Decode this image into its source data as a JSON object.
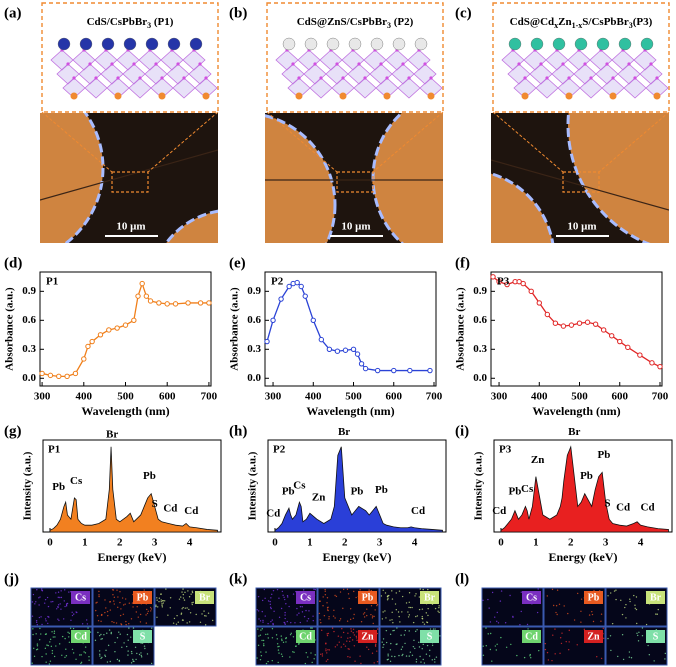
{
  "panels": [
    {
      "label": "(a)",
      "title": [
        {
          "text": "CdS/CsPbBr"
        },
        {
          "text": "3",
          "sub": true
        },
        {
          "text": " (P1)"
        }
      ],
      "scale_bar": "10 μm"
    },
    {
      "label": "(b)",
      "title": [
        {
          "text": "CdS@ZnS/CsPbBr"
        },
        {
          "text": "3",
          "sub": true
        },
        {
          "text": " (P2)"
        }
      ],
      "scale_bar": "10 μm"
    },
    {
      "label": "(c)",
      "title": [
        {
          "text": "CdS@Cd"
        },
        {
          "text": "x",
          "sub": true
        },
        {
          "text": "Zn"
        },
        {
          "text": "1-x",
          "sub": true
        },
        {
          "text": "S/CsPbBr"
        },
        {
          "text": "3",
          "sub": true
        },
        {
          "text": "(P3)"
        }
      ],
      "scale_bar": "10 μm"
    }
  ],
  "chart_data": [
    {
      "type": "line",
      "label": "(d)",
      "annotation": "P1",
      "color": "#f07f1a",
      "x": [
        300,
        320,
        340,
        360,
        380,
        400,
        410,
        420,
        440,
        460,
        480,
        500,
        520,
        530,
        540,
        550,
        560,
        580,
        600,
        620,
        650,
        680,
        700
      ],
      "values": [
        0.05,
        0.03,
        0.02,
        0.02,
        0.05,
        0.2,
        0.33,
        0.38,
        0.45,
        0.5,
        0.52,
        0.55,
        0.6,
        0.85,
        0.98,
        0.85,
        0.8,
        0.78,
        0.77,
        0.77,
        0.78,
        0.78,
        0.78
      ],
      "xlim": [
        295,
        705
      ],
      "ylim": [
        -0.08,
        1.1
      ],
      "xticks": [
        300,
        400,
        500,
        600,
        700
      ],
      "yticks": [
        {
          "value": 0,
          "label": "0.0"
        },
        {
          "value": 0.3,
          "label": "0.3"
        },
        {
          "value": 0.6,
          "label": "0.6"
        },
        {
          "value": 0.9,
          "label": "0.9"
        }
      ],
      "xlabel": "Wavelength (nm)",
      "ylabel": "Absorbance (a.u.)"
    },
    {
      "type": "line",
      "label": "(e)",
      "annotation": "P2",
      "color": "#2b43d6",
      "x": [
        285,
        300,
        320,
        340,
        350,
        360,
        370,
        380,
        400,
        420,
        440,
        460,
        480,
        500,
        510,
        520,
        530,
        560,
        600,
        640,
        690
      ],
      "values": [
        0.38,
        0.6,
        0.82,
        0.95,
        0.98,
        0.99,
        0.95,
        0.85,
        0.6,
        0.4,
        0.3,
        0.28,
        0.29,
        0.3,
        0.25,
        0.15,
        0.1,
        0.08,
        0.08,
        0.08,
        0.08
      ],
      "xlim": [
        280,
        705
      ],
      "ylim": [
        -0.08,
        1.1
      ],
      "xticks": [
        300,
        400,
        500,
        600,
        700
      ],
      "yticks": [
        {
          "value": 0,
          "label": "0.0"
        },
        {
          "value": 0.3,
          "label": "0.3"
        },
        {
          "value": 0.6,
          "label": "0.6"
        },
        {
          "value": 0.9,
          "label": "0.9"
        }
      ],
      "xlabel": "Wavelength (nm)",
      "ylabel": "Absorbance (a.u.)"
    },
    {
      "type": "line",
      "label": "(f)",
      "annotation": "P3",
      "color": "#e02525",
      "x": [
        285,
        300,
        320,
        340,
        350,
        360,
        380,
        400,
        420,
        440,
        460,
        480,
        500,
        520,
        540,
        560,
        580,
        600,
        620,
        650,
        680,
        700
      ],
      "values": [
        1.05,
        1.0,
        0.97,
        1.0,
        1.0,
        0.98,
        0.9,
        0.78,
        0.66,
        0.57,
        0.54,
        0.55,
        0.57,
        0.58,
        0.56,
        0.5,
        0.44,
        0.38,
        0.32,
        0.24,
        0.16,
        0.12
      ],
      "xlim": [
        280,
        705
      ],
      "ylim": [
        -0.08,
        1.1
      ],
      "xticks": [
        300,
        400,
        500,
        600,
        700
      ],
      "yticks": [
        {
          "value": 0,
          "label": "0.0"
        },
        {
          "value": 0.3,
          "label": "0.3"
        },
        {
          "value": 0.6,
          "label": "0.6"
        },
        {
          "value": 0.9,
          "label": "0.9"
        }
      ],
      "xlabel": "Wavelength (nm)",
      "ylabel": "Absorbance (a.u.)"
    },
    {
      "type": "area",
      "label": "(g)",
      "annotations": [
        "P1",
        "Pb",
        "Cs",
        "Br",
        "Pb",
        "S",
        "Cd",
        "Cd"
      ],
      "color": "#f28020",
      "x": [
        0,
        0.1,
        0.2,
        0.3,
        0.4,
        0.45,
        0.5,
        0.6,
        0.7,
        0.75,
        0.8,
        0.9,
        1.0,
        1.2,
        1.4,
        1.6,
        1.7,
        1.75,
        1.8,
        1.9,
        2.0,
        2.2,
        2.3,
        2.4,
        2.6,
        2.7,
        2.8,
        2.9,
        3.0,
        3.1,
        3.2,
        3.4,
        3.6,
        3.8,
        3.9,
        4.0,
        4.2,
        4.5,
        4.8
      ],
      "values": [
        0.02,
        0.04,
        0.08,
        0.15,
        0.3,
        0.35,
        0.2,
        0.15,
        0.4,
        0.38,
        0.15,
        0.1,
        0.08,
        0.08,
        0.1,
        0.15,
        0.5,
        1.0,
        0.5,
        0.15,
        0.12,
        0.18,
        0.22,
        0.12,
        0.2,
        0.3,
        0.4,
        0.45,
        0.3,
        0.15,
        0.12,
        0.1,
        0.08,
        0.07,
        0.1,
        0.06,
        0.05,
        0.03,
        0.02
      ],
      "xlim": [
        -0.2,
        4.9
      ],
      "ylim": [
        0,
        1.08
      ],
      "xticks": [
        0,
        1,
        2,
        3,
        4
      ],
      "xlabel": "Energy (keV)",
      "ylabel": "Intensity (a.u.)"
    },
    {
      "type": "area",
      "label": "(h)",
      "annotations": [
        "P2",
        "Cd",
        "Pb",
        "Cs",
        "Zn",
        "Br",
        "Pb",
        "Pb",
        "Cd"
      ],
      "color": "#2a3fd8",
      "x": [
        0,
        0.1,
        0.2,
        0.3,
        0.4,
        0.45,
        0.5,
        0.6,
        0.7,
        0.75,
        0.8,
        0.9,
        1.0,
        1.2,
        1.4,
        1.6,
        1.7,
        1.75,
        1.8,
        1.9,
        2.0,
        2.2,
        2.3,
        2.4,
        2.6,
        2.7,
        2.8,
        2.9,
        3.0,
        3.1,
        3.2,
        3.4,
        3.6,
        3.8,
        3.9,
        4.0,
        4.2,
        4.5,
        4.8
      ],
      "values": [
        0.02,
        0.05,
        0.1,
        0.2,
        0.28,
        0.2,
        0.15,
        0.2,
        0.35,
        0.3,
        0.12,
        0.15,
        0.22,
        0.15,
        0.1,
        0.15,
        0.3,
        0.6,
        0.9,
        1.0,
        0.4,
        0.2,
        0.25,
        0.3,
        0.25,
        0.2,
        0.25,
        0.3,
        0.2,
        0.1,
        0.08,
        0.06,
        0.05,
        0.05,
        0.06,
        0.05,
        0.04,
        0.03,
        0.02
      ],
      "xlim": [
        -0.2,
        4.9
      ],
      "ylim": [
        0,
        1.08
      ],
      "xticks": [
        0,
        1,
        2,
        3,
        4
      ],
      "xlabel": "Energy (keV)",
      "ylabel": "Intensity (a.u.)"
    },
    {
      "type": "area",
      "label": "(i)",
      "annotations": [
        "P3",
        "Cd",
        "Pb",
        "Cs",
        "Zn",
        "Br",
        "Pb",
        "Pb",
        "S",
        "Cd",
        "Cd"
      ],
      "color": "#e82020",
      "x": [
        0,
        0.1,
        0.2,
        0.3,
        0.4,
        0.45,
        0.5,
        0.6,
        0.7,
        0.75,
        0.8,
        0.9,
        1.0,
        1.2,
        1.4,
        1.6,
        1.7,
        1.75,
        1.8,
        1.9,
        2.0,
        2.2,
        2.3,
        2.4,
        2.6,
        2.7,
        2.8,
        2.9,
        3.0,
        3.1,
        3.2,
        3.4,
        3.6,
        3.8,
        3.9,
        4.0,
        4.2,
        4.5,
        4.8
      ],
      "values": [
        0.02,
        0.05,
        0.1,
        0.15,
        0.25,
        0.2,
        0.15,
        0.2,
        0.3,
        0.25,
        0.15,
        0.3,
        0.65,
        0.2,
        0.15,
        0.2,
        0.3,
        0.4,
        0.6,
        0.9,
        1.0,
        0.3,
        0.35,
        0.45,
        0.3,
        0.5,
        0.65,
        0.7,
        0.35,
        0.15,
        0.1,
        0.08,
        0.07,
        0.1,
        0.12,
        0.08,
        0.06,
        0.04,
        0.03
      ],
      "xlim": [
        -0.2,
        4.9
      ],
      "ylim": [
        0,
        1.08
      ],
      "xticks": [
        0,
        1,
        2,
        3,
        4
      ],
      "xlabel": "Energy (keV)",
      "ylabel": "Intensity (a.u.)"
    }
  ],
  "maps": [
    {
      "label": "(j)",
      "elements": [
        "Cs",
        "Pb",
        "Br",
        "Cd",
        "S"
      ]
    },
    {
      "label": "(k)",
      "elements": [
        "Cs",
        "Pb",
        "Br",
        "Cd",
        "Zn",
        "S"
      ]
    },
    {
      "label": "(l)",
      "elements": [
        "Cs",
        "Pb",
        "Br",
        "Cd",
        "Zn",
        "S"
      ]
    }
  ]
}
